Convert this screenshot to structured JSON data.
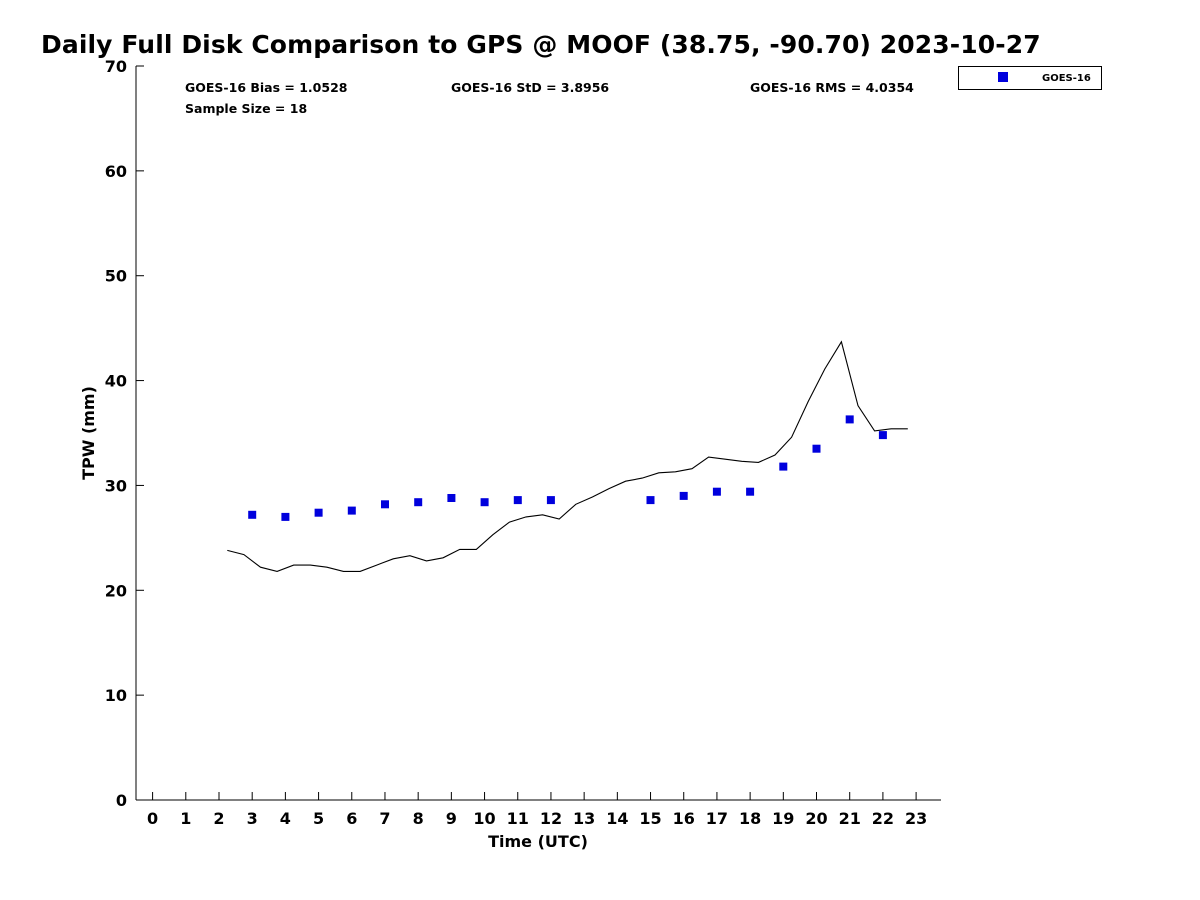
{
  "chart_data": {
    "type": "scatter",
    "title": "Daily Full Disk Comparison to GPS @ MOOF (38.75, -90.70) 2023-10-27",
    "xlabel": "Time (UTC)",
    "ylabel": "TPW (mm)",
    "xlim": [
      -0.5,
      23.75
    ],
    "ylim": [
      0,
      70
    ],
    "x_ticks": [
      "0",
      "1",
      "2",
      "3",
      "4",
      "5",
      "6",
      "7",
      "8",
      "9",
      "10",
      "11",
      "12",
      "13",
      "14",
      "15",
      "16",
      "17",
      "18",
      "19",
      "20",
      "21",
      "22",
      "23"
    ],
    "y_ticks": [
      "0",
      "10",
      "20",
      "30",
      "40",
      "50",
      "60",
      "70"
    ],
    "grid": false,
    "legend": {
      "position": "top-right-outside",
      "entries": [
        "GOES-16"
      ]
    },
    "stats": {
      "bias": "GOES-16 Bias = 1.0528",
      "std": "GOES-16 StD = 3.8956",
      "rms": "GOES-16 RMS = 4.0354",
      "sample": "Sample Size = 18"
    },
    "series": [
      {
        "name": "GOES-16",
        "kind": "scatter",
        "color": "#0000dd",
        "x": [
          3,
          4,
          5,
          6,
          7,
          8,
          9,
          10,
          11,
          12,
          15,
          16,
          17,
          18,
          19,
          20,
          21,
          22
        ],
        "y": [
          27.2,
          27.0,
          27.4,
          27.6,
          28.2,
          28.4,
          28.8,
          28.4,
          28.6,
          28.6,
          28.6,
          29.0,
          29.4,
          29.4,
          31.8,
          33.5,
          36.3,
          34.8
        ]
      },
      {
        "kind": "line",
        "color": "#000000",
        "x": [
          2.25,
          2.75,
          3.25,
          3.75,
          4.25,
          4.75,
          5.25,
          5.75,
          6.25,
          6.75,
          7.25,
          7.75,
          8.25,
          8.75,
          9.25,
          9.75,
          10.25,
          10.75,
          11.25,
          11.75,
          12.25,
          12.75,
          13.25,
          13.75,
          14.25,
          14.75,
          15.25,
          15.75,
          16.25,
          16.75,
          17.25,
          17.75,
          18.25,
          18.75,
          19.25,
          19.75,
          20.25,
          20.75,
          21.25,
          21.75,
          22.25,
          22.75
        ],
        "y": [
          23.8,
          23.4,
          22.2,
          21.8,
          22.4,
          22.4,
          22.2,
          21.8,
          21.8,
          22.4,
          23.0,
          23.3,
          22.8,
          23.1,
          23.9,
          23.9,
          25.3,
          26.5,
          27.0,
          27.2,
          26.8,
          28.2,
          28.9,
          29.7,
          30.4,
          30.7,
          31.2,
          31.3,
          31.6,
          32.7,
          32.5,
          32.3,
          32.2,
          32.9,
          34.6,
          38.0,
          41.1,
          43.7,
          37.6,
          35.2,
          35.4,
          35.4
        ]
      }
    ]
  }
}
